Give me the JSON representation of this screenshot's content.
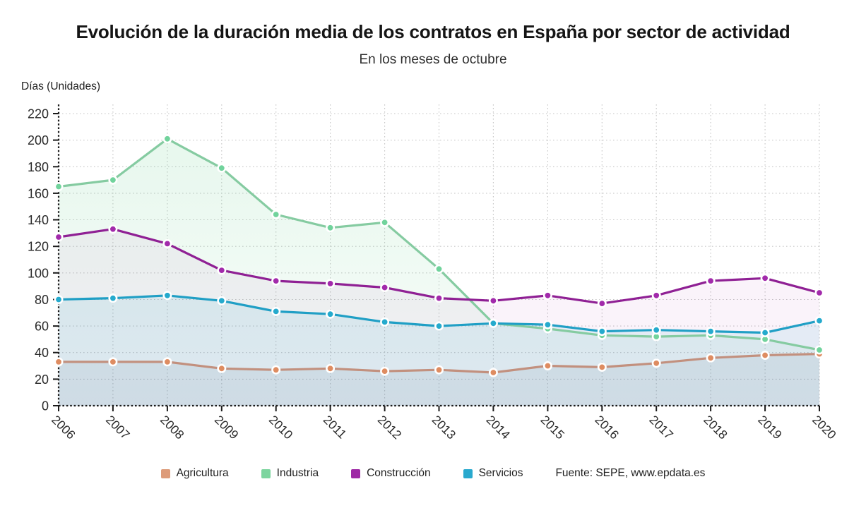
{
  "header": {
    "title": "Evolución de la duración media de los contratos en España por sector de actividad",
    "subtitle": "En los meses de octubre"
  },
  "axes": {
    "y_label": "Días (Unidades)",
    "y_tick_min": 0,
    "y_tick_max": 220,
    "y_tick_step": 20
  },
  "source": "Fuente: SEPE, www.epdata.es",
  "colors": {
    "grid": "#c6c6c6",
    "axis": "#1a1a1a",
    "tick_label": "#2a2a2a"
  },
  "chart_data": {
    "type": "line",
    "title": "Evolución de la duración media de los contratos en España por sector de actividad",
    "subtitle": "En los meses de octubre",
    "ylabel": "Días (Unidades)",
    "xlabel": "",
    "ylim": [
      0,
      230
    ],
    "grid": true,
    "legend_position": "bottom",
    "x": [
      "2006",
      "2007",
      "2008",
      "2009",
      "2010",
      "2011",
      "2012",
      "2013",
      "2014",
      "2015",
      "2016",
      "2017",
      "2018",
      "2019",
      "2020"
    ],
    "series": [
      {
        "name": "Agricultura",
        "swatch_color": "#DD9B79",
        "line_color": "#C2907E",
        "dot_color": "#DE8C61",
        "area_gradient": [
          "rgba(105,120,140,0.03)",
          "rgba(105,120,140,0.13)"
        ],
        "values": [
          33,
          33,
          33,
          28,
          27,
          28,
          26,
          27,
          25,
          30,
          29,
          32,
          36,
          38,
          39
        ]
      },
      {
        "name": "Industria",
        "swatch_color": "#7DD59F",
        "line_color": "#85CBA1",
        "dot_color": "#71D39C",
        "area_gradient": [
          "rgba(125,213,159,0.20)",
          "rgba(125,213,159,0.05)"
        ],
        "values": [
          165,
          170,
          201,
          179,
          144,
          134,
          138,
          103,
          62,
          58,
          53,
          52,
          53,
          50,
          42
        ]
      },
      {
        "name": "Construcción",
        "swatch_color": "#9E28A5",
        "line_color": "#8F2094",
        "dot_color": "#A22AAB",
        "area_flat": "rgba(158,40,165,0.055)",
        "values": [
          127,
          133,
          122,
          102,
          94,
          92,
          89,
          81,
          79,
          83,
          77,
          83,
          94,
          96,
          85
        ]
      },
      {
        "name": "Servicios",
        "swatch_color": "#29A9CE",
        "line_color": "#209FC5",
        "dot_color": "#25AACD",
        "area_flat": "rgba(42,169,205,0.10)",
        "values": [
          80,
          81,
          83,
          79,
          71,
          69,
          63,
          60,
          62,
          61,
          56,
          57,
          56,
          55,
          64
        ]
      }
    ]
  }
}
